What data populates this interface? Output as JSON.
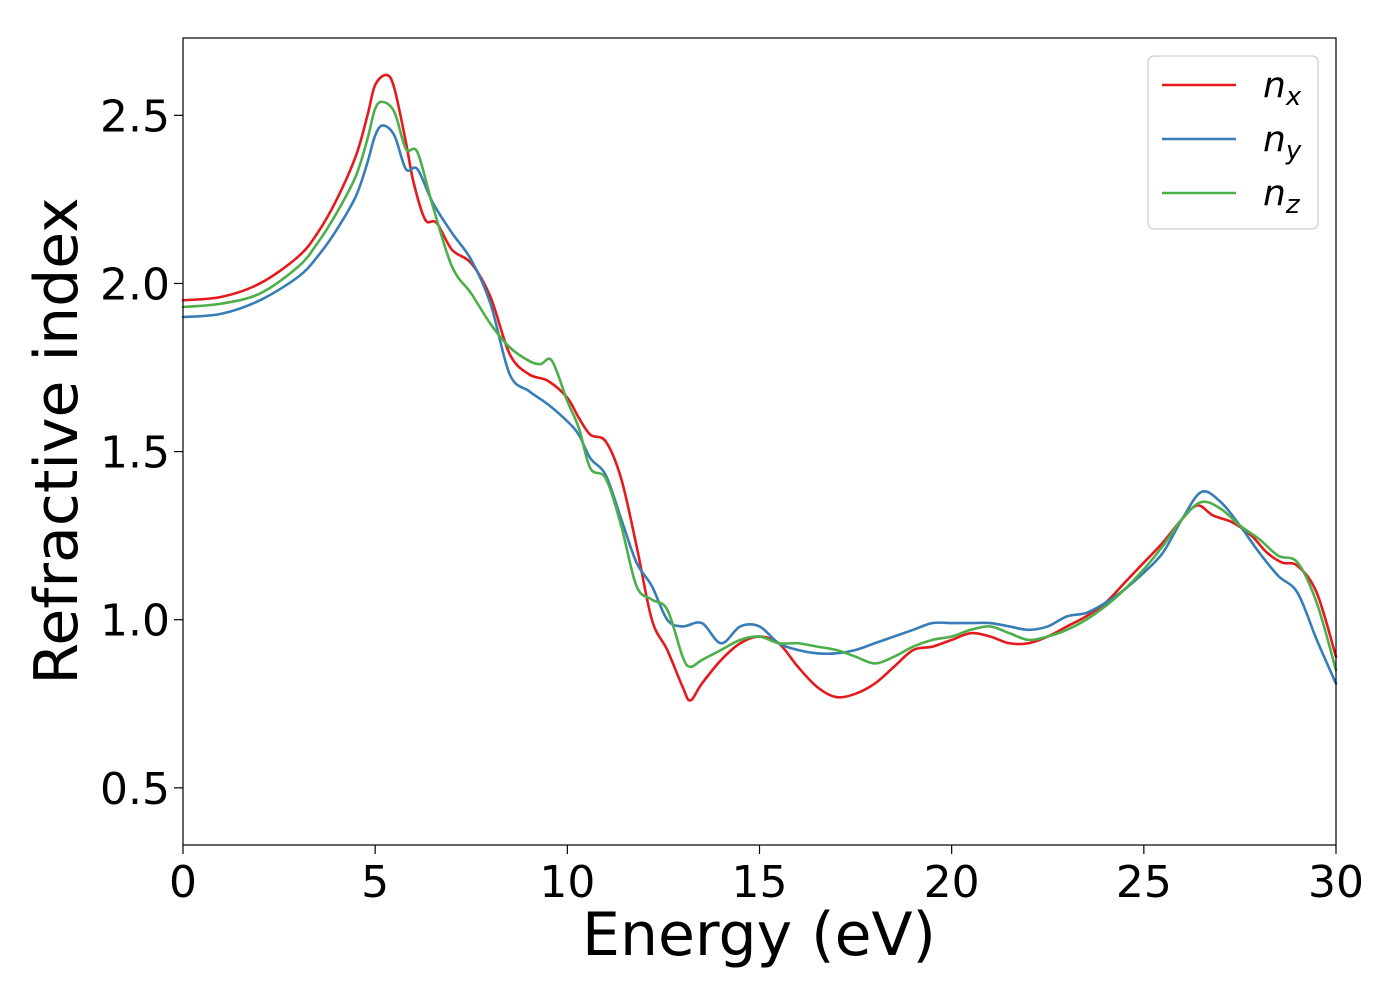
{
  "chart_data": {
    "type": "line",
    "xlabel": "Energy (eV)",
    "ylabel": "Refractive index",
    "xlim": [
      0,
      30
    ],
    "ylim": [
      0.33,
      2.73
    ],
    "xticks": [
      "0",
      "5",
      "10",
      "15",
      "20",
      "25",
      "30"
    ],
    "yticks": [
      "0.5",
      "1.0",
      "1.5",
      "2.0",
      "2.5"
    ],
    "grid": false,
    "legend": {
      "position": "top-right",
      "entries": [
        {
          "base": "n",
          "sub": "x",
          "color": "#e41a1c"
        },
        {
          "base": "n",
          "sub": "y",
          "color": "#377eb8"
        },
        {
          "base": "n",
          "sub": "z",
          "color": "#4daf4a"
        }
      ]
    },
    "series": [
      {
        "color": "#e41a1c",
        "points": [
          [
            0,
            1.95
          ],
          [
            1,
            1.96
          ],
          [
            2,
            2.0
          ],
          [
            3,
            2.08
          ],
          [
            3.5,
            2.15
          ],
          [
            4,
            2.25
          ],
          [
            4.5,
            2.38
          ],
          [
            4.8,
            2.5
          ],
          [
            5.0,
            2.59
          ],
          [
            5.3,
            2.62
          ],
          [
            5.5,
            2.58
          ],
          [
            5.8,
            2.42
          ],
          [
            6.0,
            2.3
          ],
          [
            6.3,
            2.19
          ],
          [
            6.6,
            2.18
          ],
          [
            7.0,
            2.1
          ],
          [
            7.5,
            2.06
          ],
          [
            8.0,
            1.96
          ],
          [
            8.5,
            1.79
          ],
          [
            9.0,
            1.73
          ],
          [
            9.5,
            1.71
          ],
          [
            10.0,
            1.66
          ],
          [
            10.3,
            1.6
          ],
          [
            10.6,
            1.55
          ],
          [
            11.0,
            1.53
          ],
          [
            11.4,
            1.42
          ],
          [
            11.8,
            1.22
          ],
          [
            12.2,
            1.0
          ],
          [
            12.6,
            0.91
          ],
          [
            13.0,
            0.8
          ],
          [
            13.2,
            0.76
          ],
          [
            13.5,
            0.81
          ],
          [
            14.0,
            0.88
          ],
          [
            14.5,
            0.93
          ],
          [
            15.0,
            0.95
          ],
          [
            15.5,
            0.93
          ],
          [
            16.0,
            0.86
          ],
          [
            16.5,
            0.8
          ],
          [
            17.0,
            0.77
          ],
          [
            17.5,
            0.78
          ],
          [
            18.0,
            0.81
          ],
          [
            18.5,
            0.86
          ],
          [
            19.0,
            0.91
          ],
          [
            19.5,
            0.92
          ],
          [
            20.0,
            0.94
          ],
          [
            20.5,
            0.96
          ],
          [
            21.0,
            0.95
          ],
          [
            21.5,
            0.93
          ],
          [
            22.0,
            0.93
          ],
          [
            22.5,
            0.95
          ],
          [
            23.0,
            0.98
          ],
          [
            23.5,
            1.01
          ],
          [
            24.0,
            1.05
          ],
          [
            24.5,
            1.11
          ],
          [
            25.0,
            1.17
          ],
          [
            25.5,
            1.23
          ],
          [
            26.0,
            1.3
          ],
          [
            26.4,
            1.34
          ],
          [
            26.8,
            1.31
          ],
          [
            27.3,
            1.29
          ],
          [
            27.8,
            1.25
          ],
          [
            28.2,
            1.2
          ],
          [
            28.6,
            1.17
          ],
          [
            29.0,
            1.16
          ],
          [
            29.5,
            1.08
          ],
          [
            30.0,
            0.89
          ]
        ]
      },
      {
        "color": "#377eb8",
        "points": [
          [
            0,
            1.9
          ],
          [
            1,
            1.91
          ],
          [
            2,
            1.95
          ],
          [
            3,
            2.02
          ],
          [
            3.5,
            2.08
          ],
          [
            4,
            2.16
          ],
          [
            4.5,
            2.26
          ],
          [
            4.8,
            2.36
          ],
          [
            5.0,
            2.44
          ],
          [
            5.2,
            2.47
          ],
          [
            5.5,
            2.44
          ],
          [
            5.8,
            2.34
          ],
          [
            6.1,
            2.34
          ],
          [
            6.5,
            2.24
          ],
          [
            7.0,
            2.15
          ],
          [
            7.5,
            2.07
          ],
          [
            8.0,
            1.94
          ],
          [
            8.5,
            1.73
          ],
          [
            9.0,
            1.68
          ],
          [
            9.5,
            1.64
          ],
          [
            10.0,
            1.59
          ],
          [
            10.3,
            1.55
          ],
          [
            10.6,
            1.48
          ],
          [
            11.0,
            1.43
          ],
          [
            11.4,
            1.3
          ],
          [
            11.8,
            1.17
          ],
          [
            12.2,
            1.1
          ],
          [
            12.6,
            1.0
          ],
          [
            13.0,
            0.98
          ],
          [
            13.5,
            0.99
          ],
          [
            14.0,
            0.93
          ],
          [
            14.5,
            0.98
          ],
          [
            15.0,
            0.98
          ],
          [
            15.5,
            0.93
          ],
          [
            16.0,
            0.91
          ],
          [
            16.5,
            0.9
          ],
          [
            17.0,
            0.9
          ],
          [
            17.5,
            0.91
          ],
          [
            18.0,
            0.93
          ],
          [
            18.5,
            0.95
          ],
          [
            19.0,
            0.97
          ],
          [
            19.5,
            0.99
          ],
          [
            20.0,
            0.99
          ],
          [
            20.5,
            0.99
          ],
          [
            21.0,
            0.99
          ],
          [
            21.5,
            0.98
          ],
          [
            22.0,
            0.97
          ],
          [
            22.5,
            0.98
          ],
          [
            23.0,
            1.01
          ],
          [
            23.5,
            1.02
          ],
          [
            24.0,
            1.05
          ],
          [
            24.5,
            1.09
          ],
          [
            25.0,
            1.14
          ],
          [
            25.5,
            1.2
          ],
          [
            26.0,
            1.3
          ],
          [
            26.5,
            1.38
          ],
          [
            27.0,
            1.35
          ],
          [
            27.5,
            1.28
          ],
          [
            28.0,
            1.2
          ],
          [
            28.5,
            1.13
          ],
          [
            29.0,
            1.08
          ],
          [
            29.5,
            0.94
          ],
          [
            30.0,
            0.81
          ]
        ]
      },
      {
        "color": "#4daf4a",
        "points": [
          [
            0,
            1.93
          ],
          [
            1,
            1.94
          ],
          [
            2,
            1.97
          ],
          [
            3,
            2.05
          ],
          [
            3.5,
            2.12
          ],
          [
            4,
            2.21
          ],
          [
            4.5,
            2.32
          ],
          [
            4.8,
            2.43
          ],
          [
            5.0,
            2.52
          ],
          [
            5.2,
            2.54
          ],
          [
            5.5,
            2.51
          ],
          [
            5.8,
            2.4
          ],
          [
            6.1,
            2.39
          ],
          [
            6.5,
            2.23
          ],
          [
            7.0,
            2.05
          ],
          [
            7.5,
            1.97
          ],
          [
            8.0,
            1.88
          ],
          [
            8.5,
            1.81
          ],
          [
            9.0,
            1.77
          ],
          [
            9.3,
            1.76
          ],
          [
            9.6,
            1.77
          ],
          [
            10.0,
            1.65
          ],
          [
            10.3,
            1.57
          ],
          [
            10.6,
            1.45
          ],
          [
            11.0,
            1.42
          ],
          [
            11.4,
            1.28
          ],
          [
            11.8,
            1.1
          ],
          [
            12.2,
            1.06
          ],
          [
            12.6,
            1.03
          ],
          [
            13.0,
            0.89
          ],
          [
            13.2,
            0.86
          ],
          [
            13.5,
            0.88
          ],
          [
            14.0,
            0.91
          ],
          [
            14.5,
            0.94
          ],
          [
            15.0,
            0.95
          ],
          [
            15.5,
            0.93
          ],
          [
            16.0,
            0.93
          ],
          [
            16.5,
            0.92
          ],
          [
            17.0,
            0.91
          ],
          [
            17.5,
            0.89
          ],
          [
            18.0,
            0.87
          ],
          [
            18.5,
            0.89
          ],
          [
            19.0,
            0.92
          ],
          [
            19.5,
            0.94
          ],
          [
            20.0,
            0.95
          ],
          [
            20.5,
            0.97
          ],
          [
            21.0,
            0.98
          ],
          [
            21.5,
            0.96
          ],
          [
            22.0,
            0.94
          ],
          [
            22.5,
            0.95
          ],
          [
            23.0,
            0.97
          ],
          [
            23.5,
            1.0
          ],
          [
            24.0,
            1.04
          ],
          [
            24.5,
            1.09
          ],
          [
            25.0,
            1.15
          ],
          [
            25.5,
            1.22
          ],
          [
            26.0,
            1.3
          ],
          [
            26.5,
            1.35
          ],
          [
            27.0,
            1.33
          ],
          [
            27.5,
            1.28
          ],
          [
            28.0,
            1.24
          ],
          [
            28.5,
            1.19
          ],
          [
            29.0,
            1.17
          ],
          [
            29.5,
            1.05
          ],
          [
            30.0,
            0.85
          ]
        ]
      }
    ]
  }
}
